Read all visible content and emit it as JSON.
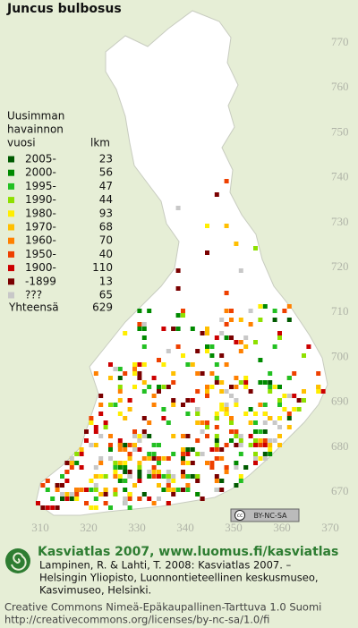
{
  "title": "Juncus bulbosus",
  "legend": {
    "heading": [
      "Uusimman",
      "havainnon",
      "vuosi"
    ],
    "count_heading": "lkm",
    "rows": [
      {
        "label": "2005-",
        "count": 23,
        "color": "#005a00"
      },
      {
        "label": "2000-",
        "count": 56,
        "color": "#008a00"
      },
      {
        "label": "1995-",
        "count": 47,
        "color": "#22c022"
      },
      {
        "label": "1990-",
        "count": 44,
        "color": "#8ee000"
      },
      {
        "label": "1980-",
        "count": 93,
        "color": "#ffee00"
      },
      {
        "label": "1970-",
        "count": 68,
        "color": "#ffbf00"
      },
      {
        "label": "1960-",
        "count": 70,
        "color": "#ff8000"
      },
      {
        "label": "1950-",
        "count": 40,
        "color": "#ee4000"
      },
      {
        "label": "1900-",
        "count": 110,
        "color": "#cc0000"
      },
      {
        "label": "-1899",
        "count": 13,
        "color": "#7a0000"
      },
      {
        "label": "???",
        "count": 65,
        "color": "#c8c8c8"
      }
    ],
    "total": {
      "label": "Yhteensä",
      "count": 629
    }
  },
  "axes": {
    "y_ticks": [
      770,
      760,
      750,
      740,
      730,
      720,
      710,
      700,
      690,
      680,
      670
    ],
    "x_ticks": [
      310,
      320,
      330,
      340,
      350,
      360,
      370
    ]
  },
  "license_badge": "BY-NC-SA",
  "footer": {
    "site": "Kasviatlas 2007, www.luomus.fi/kasviatlas",
    "citation": [
      "Lampinen, R. & Lahti, T. 2008: Kasviatlas 2007. –",
      "Helsingin Yliopisto, Luonnontieteellinen keskusmuseo,",
      "Kasvimuseo, Helsinki."
    ],
    "license": [
      "Creative Commons Nimeä-Epäkaupallinen-Tarttuva 1.0 Suomi",
      "http://creativecommons.org/licenses/by-nc-sa/1.0/fi"
    ]
  }
}
